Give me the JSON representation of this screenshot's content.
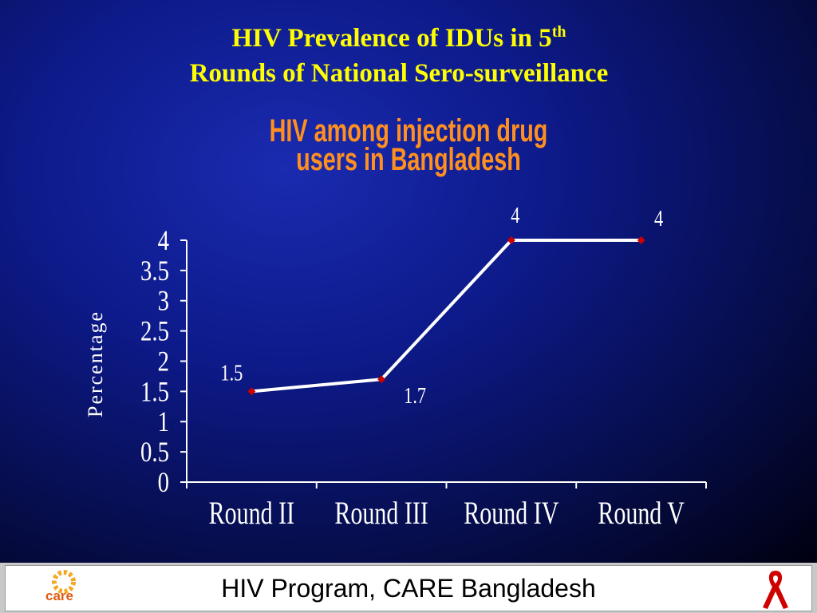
{
  "slide": {
    "title_line1": "HIV Prevalence of IDUs in 5",
    "title_superscript": "th",
    "title_line2": "Rounds of National Sero-surveillance"
  },
  "chart_data": {
    "type": "line",
    "title": "HIV among injection drug users in Bangladesh",
    "y_label": "Percentage",
    "categories": [
      "Round II",
      "Round III",
      "Round IV",
      "Round V"
    ],
    "values": [
      1.5,
      1.7,
      4,
      4
    ],
    "color": "#ffffff",
    "marker_color": "#cc0000",
    "ylim": [
      0,
      4
    ],
    "yticks": [
      0,
      0.5,
      1,
      1.5,
      2,
      2.5,
      3,
      3.5,
      4
    ],
    "grid": false
  },
  "footer": {
    "logo_text": "care",
    "text": "HIV Program, CARE Bangladesh"
  }
}
